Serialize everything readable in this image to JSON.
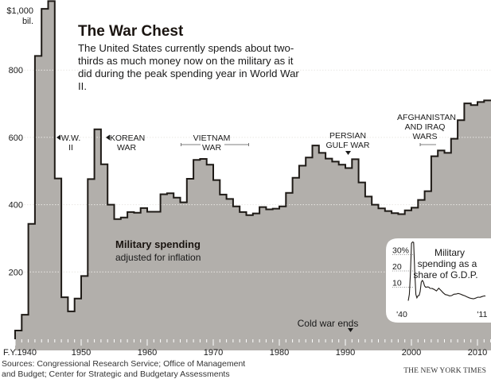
{
  "header": {
    "title": "The War Chest",
    "subtitle": "The United States currently spends about two-thirds as much money now on the military as it did during the peak spending year in World War II."
  },
  "footer": {
    "sources": "Sources: Congressional Research Service; Office of Management and Budget; Center for Strategic and Budgetary Assessments",
    "credit": "THE NEW YORK TIMES"
  },
  "colors": {
    "area_fill": "#b2afab",
    "line": "#1e1a16",
    "grid": "#e9e7e4",
    "background": "#ffffff"
  },
  "chart_data": [
    {
      "type": "area",
      "title": "Military spending",
      "subtitle": "adjusted for inflation",
      "ylabel": "$ billions",
      "y_unit_label": "bil.",
      "y_ticks": [
        200,
        400,
        600,
        800,
        1000
      ],
      "y_tick_labels": [
        "200",
        "400",
        "600",
        "800",
        "$1,000"
      ],
      "ylim": [
        0,
        1000
      ],
      "x_ticks": [
        1940,
        1950,
        1960,
        1970,
        1980,
        1990,
        2000,
        2010
      ],
      "x_tick_labels": [
        "F.Y.1940",
        "1950",
        "1960",
        "1970",
        "1980",
        "1990",
        "2000",
        "2010"
      ],
      "xlim": [
        1940,
        2012
      ],
      "grid": true,
      "step": true,
      "x": [
        1940,
        1941,
        1942,
        1943,
        1944,
        1945,
        1946,
        1947,
        1948,
        1949,
        1950,
        1951,
        1952,
        1953,
        1954,
        1955,
        1956,
        1957,
        1958,
        1959,
        1960,
        1961,
        1962,
        1963,
        1964,
        1965,
        1966,
        1967,
        1968,
        1969,
        1970,
        1971,
        1972,
        1973,
        1974,
        1975,
        1976,
        1977,
        1978,
        1979,
        1980,
        1981,
        1982,
        1983,
        1984,
        1985,
        1986,
        1987,
        1988,
        1989,
        1990,
        1991,
        1992,
        1993,
        1994,
        1995,
        1996,
        1997,
        1998,
        1999,
        2000,
        2001,
        2002,
        2003,
        2004,
        2005,
        2006,
        2007,
        2008,
        2009,
        2010,
        2011
      ],
      "values": [
        26,
        73,
        343,
        842,
        982,
        1005,
        478,
        125,
        83,
        121,
        188,
        476,
        624,
        520,
        400,
        357,
        362,
        378,
        376,
        390,
        379,
        379,
        431,
        434,
        421,
        407,
        477,
        533,
        536,
        519,
        473,
        430,
        417,
        395,
        378,
        369,
        374,
        393,
        386,
        388,
        395,
        435,
        480,
        516,
        540,
        576,
        554,
        537,
        528,
        519,
        509,
        535,
        466,
        424,
        400,
        389,
        381,
        375,
        372,
        383,
        391,
        414,
        440,
        544,
        561,
        554,
        596,
        651,
        701,
        696,
        705,
        710
      ],
      "annotations": [
        {
          "label": "W.W. II",
          "x": 1945,
          "marker": "left-arrow"
        },
        {
          "label": "KOREAN WAR",
          "x": 1953,
          "marker": "left-arrow"
        },
        {
          "label": "VIETNAM WAR",
          "x_range": [
            1965,
            1975
          ],
          "marker": "span"
        },
        {
          "label": "PERSIAN GULF WAR",
          "x": 1991,
          "marker": "down-arrow"
        },
        {
          "label": "AFGHANISTAN AND IRAQ WARS",
          "x_range": [
            2001,
            2003
          ],
          "marker": "span"
        },
        {
          "label": "Cold war ends",
          "x": 1991,
          "marker": "down-arrow"
        }
      ]
    },
    {
      "type": "line",
      "title": "Military spending as a share of G.D.P.",
      "ylabel": "% of G.D.P.",
      "y_ticks": [
        10,
        20,
        30
      ],
      "y_tick_labels": [
        "10",
        "20",
        "30%"
      ],
      "ylim": [
        0,
        38
      ],
      "x_tick_labels": [
        "'40",
        "'11"
      ],
      "xlim": [
        1940,
        2011
      ],
      "grid": true,
      "x": [
        1940,
        1941,
        1942,
        1943,
        1944,
        1945,
        1946,
        1947,
        1948,
        1949,
        1950,
        1951,
        1952,
        1953,
        1954,
        1955,
        1956,
        1957,
        1958,
        1959,
        1960,
        1962,
        1964,
        1966,
        1968,
        1970,
        1972,
        1974,
        1976,
        1978,
        1980,
        1982,
        1984,
        1986,
        1988,
        1990,
        1992,
        1994,
        1996,
        1998,
        2000,
        2002,
        2004,
        2006,
        2008,
        2010,
        2011
      ],
      "values": [
        1.7,
        5.6,
        17.8,
        37.0,
        37.8,
        37.5,
        19.2,
        5.5,
        3.5,
        4.8,
        5.0,
        7.4,
        13.2,
        14.2,
        13.1,
        10.8,
        10.0,
        10.1,
        10.2,
        10.0,
        9.3,
        9.2,
        8.6,
        7.7,
        9.4,
        8.1,
        6.7,
        5.5,
        5.2,
        4.7,
        4.9,
        5.7,
        5.8,
        6.2,
        5.8,
        5.2,
        4.8,
        4.1,
        3.5,
        3.1,
        2.9,
        3.3,
        3.9,
        3.8,
        4.3,
        4.7,
        4.6
      ]
    }
  ]
}
